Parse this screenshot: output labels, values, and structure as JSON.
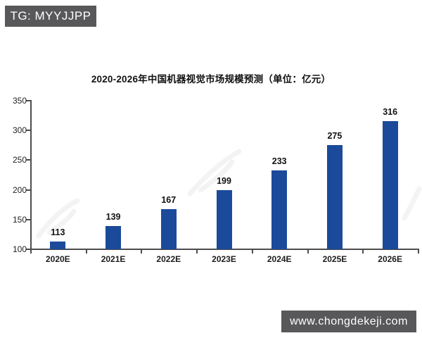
{
  "overlays": {
    "tg_badge": "TG: MYYJJPP",
    "site_badge": "www.chongdekeji.com",
    "badge_color": "#58585b"
  },
  "chart_data": {
    "type": "bar",
    "title": "2020-2026年中国机器视觉市场规模预测（单位：亿元）",
    "categories": [
      "2020E",
      "2021E",
      "2022E",
      "2023E",
      "2024E",
      "2025E",
      "2026E"
    ],
    "values": [
      113,
      139,
      167,
      199,
      233,
      275,
      316
    ],
    "xlabel": "",
    "ylabel": "",
    "ylim": [
      100,
      350
    ],
    "yticks": [
      100,
      150,
      200,
      250,
      300,
      350
    ],
    "grid": false,
    "legend": "none",
    "value_labels": true,
    "bar_color": "#1b4a9b",
    "axis_color": "#4d4d4d"
  }
}
